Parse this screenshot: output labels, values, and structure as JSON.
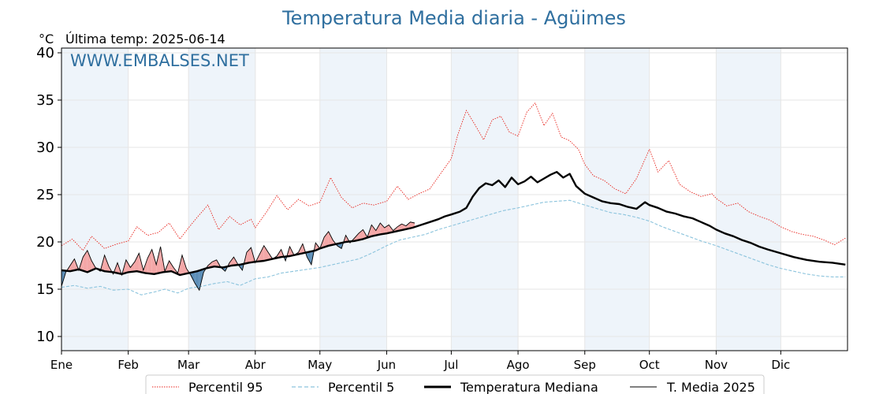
{
  "colors": {
    "title": "#2f6f9f",
    "p95": "#e8231c",
    "p5": "#8cc4dd",
    "median": "#000000",
    "current": "#000000",
    "above_fill": "#f4a7a7",
    "below_fill": "#5d8fb8",
    "band": "#eef4fa"
  },
  "chart_data": {
    "type": "line",
    "title": "Temperatura Media diaria - Agüimes",
    "unit_label": "°C",
    "subtitle": "Última temp: 2025-06-14",
    "watermark": "WWW.EMBALSES.NET",
    "ylim": [
      8.5,
      40.5
    ],
    "xlim": [
      0,
      365
    ],
    "y_ticks": [
      10,
      15,
      20,
      25,
      30,
      35,
      40
    ],
    "month_labels": [
      "Ene",
      "Feb",
      "Mar",
      "Abr",
      "May",
      "Jun",
      "Jul",
      "Ago",
      "Sep",
      "Oct",
      "Nov",
      "Dic"
    ],
    "month_starts": [
      0,
      31,
      59,
      90,
      120,
      151,
      181,
      212,
      243,
      273,
      304,
      334,
      365
    ],
    "shaded_months": [
      0,
      2,
      4,
      6,
      8,
      10
    ],
    "grid": true,
    "legend_position": "bottom",
    "series": [
      {
        "name": "Percentil 95",
        "style": "dotted-red",
        "x": [
          0,
          5,
          10,
          14,
          20,
          26,
          31,
          35,
          40,
          45,
          50,
          55,
          59,
          63,
          68,
          73,
          78,
          83,
          88,
          90,
          95,
          100,
          105,
          110,
          115,
          120,
          125,
          130,
          135,
          140,
          145,
          151,
          156,
          161,
          166,
          171,
          176,
          181,
          184,
          188,
          192,
          196,
          200,
          204,
          208,
          212,
          216,
          220,
          224,
          228,
          232,
          236,
          240,
          243,
          247,
          252,
          257,
          262,
          267,
          273,
          277,
          282,
          287,
          292,
          297,
          302,
          304,
          309,
          314,
          319,
          324,
          329,
          334,
          339,
          344,
          349,
          354,
          359,
          364
        ],
        "y": [
          19.6,
          20.3,
          19.1,
          20.6,
          19.3,
          19.8,
          20.1,
          21.6,
          20.7,
          21.0,
          22.0,
          20.3,
          21.5,
          22.6,
          23.9,
          21.3,
          22.7,
          21.8,
          22.4,
          21.5,
          23.1,
          24.9,
          23.4,
          24.5,
          23.8,
          24.2,
          26.8,
          24.7,
          23.6,
          24.1,
          23.9,
          24.3,
          25.9,
          24.5,
          25.1,
          25.6,
          27.2,
          28.8,
          31.3,
          33.9,
          32.4,
          30.8,
          32.9,
          33.3,
          31.6,
          31.2,
          33.7,
          34.7,
          32.3,
          33.6,
          31.1,
          30.7,
          29.8,
          28.2,
          27.0,
          26.5,
          25.6,
          25.1,
          26.7,
          29.8,
          27.4,
          28.6,
          26.1,
          25.3,
          24.8,
          25.1,
          24.6,
          23.8,
          24.1,
          23.2,
          22.7,
          22.3,
          21.6,
          21.1,
          20.8,
          20.6,
          20.2,
          19.7,
          20.4
        ]
      },
      {
        "name": "Percentil 5",
        "style": "dashed-lightblue",
        "x": [
          0,
          6,
          12,
          18,
          24,
          31,
          37,
          43,
          48,
          54,
          59,
          65,
          71,
          77,
          83,
          90,
          96,
          102,
          108,
          114,
          120,
          126,
          132,
          138,
          144,
          151,
          157,
          163,
          169,
          175,
          181,
          187,
          193,
          199,
          205,
          212,
          218,
          224,
          230,
          236,
          243,
          249,
          255,
          261,
          267,
          273,
          279,
          285,
          291,
          297,
          304,
          310,
          316,
          322,
          328,
          334,
          340,
          346,
          352,
          358,
          364
        ],
        "y": [
          15.2,
          15.4,
          15.1,
          15.3,
          14.9,
          15.0,
          14.4,
          14.7,
          15.0,
          14.6,
          15.1,
          15.3,
          15.6,
          15.8,
          15.4,
          16.1,
          16.3,
          16.7,
          16.9,
          17.1,
          17.3,
          17.6,
          17.9,
          18.2,
          18.8,
          19.6,
          20.2,
          20.5,
          20.8,
          21.3,
          21.7,
          22.1,
          22.5,
          22.9,
          23.3,
          23.6,
          23.9,
          24.2,
          24.3,
          24.4,
          23.9,
          23.5,
          23.1,
          22.9,
          22.6,
          22.2,
          21.6,
          21.1,
          20.6,
          20.1,
          19.6,
          19.1,
          18.6,
          18.1,
          17.6,
          17.2,
          16.9,
          16.6,
          16.4,
          16.3,
          16.3
        ]
      },
      {
        "name": "Temperatura Mediana",
        "style": "thick-black",
        "x": [
          0,
          4,
          8,
          12,
          16,
          20,
          24,
          28,
          31,
          35,
          39,
          43,
          47,
          51,
          55,
          59,
          63,
          67,
          71,
          75,
          79,
          83,
          87,
          90,
          94,
          98,
          102,
          106,
          110,
          114,
          118,
          120,
          124,
          128,
          132,
          136,
          140,
          144,
          148,
          151,
          155,
          159,
          163,
          167,
          171,
          175,
          178,
          181,
          185,
          188,
          191,
          194,
          197,
          200,
          203,
          206,
          209,
          212,
          215,
          218,
          221,
          224,
          227,
          230,
          233,
          236,
          239,
          243,
          247,
          251,
          255,
          259,
          263,
          267,
          271,
          273,
          277,
          281,
          285,
          289,
          293,
          297,
          301,
          304,
          308,
          312,
          316,
          320,
          324,
          328,
          334,
          340,
          346,
          352,
          358,
          364
        ],
        "y": [
          17.0,
          16.9,
          17.1,
          16.8,
          17.2,
          16.9,
          16.8,
          16.6,
          16.8,
          16.9,
          16.7,
          16.6,
          16.8,
          16.9,
          16.5,
          16.7,
          16.9,
          17.2,
          17.4,
          17.3,
          17.5,
          17.6,
          17.8,
          17.9,
          18.0,
          18.2,
          18.4,
          18.5,
          18.7,
          18.9,
          19.1,
          19.3,
          19.6,
          19.8,
          20.0,
          20.1,
          20.3,
          20.6,
          20.8,
          20.9,
          21.1,
          21.3,
          21.5,
          21.8,
          22.1,
          22.4,
          22.7,
          22.9,
          23.2,
          23.6,
          24.8,
          25.7,
          26.2,
          26.0,
          26.5,
          25.8,
          26.8,
          26.1,
          26.4,
          26.9,
          26.3,
          26.7,
          27.1,
          27.4,
          26.8,
          27.2,
          25.9,
          25.1,
          24.7,
          24.3,
          24.1,
          24.0,
          23.7,
          23.5,
          24.2,
          23.9,
          23.6,
          23.2,
          23.0,
          22.7,
          22.5,
          22.1,
          21.7,
          21.3,
          20.9,
          20.6,
          20.2,
          19.9,
          19.5,
          19.2,
          18.8,
          18.4,
          18.1,
          17.9,
          17.8,
          17.6
        ]
      },
      {
        "name": "T. Media 2025",
        "style": "thin-black",
        "x": [
          0,
          2,
          4,
          6,
          8,
          10,
          12,
          14,
          16,
          18,
          20,
          22,
          24,
          26,
          28,
          30,
          32,
          34,
          36,
          38,
          40,
          42,
          44,
          46,
          48,
          50,
          52,
          54,
          56,
          58,
          60,
          62,
          64,
          66,
          68,
          70,
          72,
          74,
          76,
          78,
          80,
          82,
          84,
          86,
          88,
          90,
          92,
          94,
          96,
          98,
          100,
          102,
          104,
          106,
          108,
          110,
          112,
          114,
          116,
          118,
          120,
          122,
          124,
          126,
          128,
          130,
          132,
          134,
          136,
          138,
          140,
          142,
          144,
          146,
          148,
          150,
          152,
          154,
          156,
          158,
          160,
          162,
          164
        ],
        "y": [
          15.3,
          16.8,
          17.5,
          18.2,
          17.0,
          18.4,
          19.1,
          18.0,
          17.2,
          16.9,
          18.6,
          17.4,
          16.6,
          17.8,
          16.5,
          18.1,
          17.3,
          17.9,
          18.8,
          17.0,
          18.3,
          19.2,
          17.6,
          19.5,
          16.9,
          18.0,
          17.3,
          16.7,
          18.6,
          17.2,
          16.5,
          15.6,
          14.9,
          16.8,
          17.5,
          17.9,
          18.1,
          17.3,
          16.9,
          17.8,
          18.4,
          17.6,
          17.0,
          18.9,
          19.4,
          17.8,
          18.7,
          19.6,
          18.9,
          18.2,
          18.5,
          19.2,
          18.0,
          19.5,
          18.6,
          18.9,
          19.8,
          18.4,
          17.6,
          19.9,
          19.3,
          20.5,
          21.1,
          20.2,
          19.6,
          19.3,
          20.7,
          19.9,
          20.4,
          20.9,
          21.3,
          20.5,
          21.8,
          21.2,
          22.0,
          21.5,
          21.8,
          21.2,
          21.6,
          21.9,
          21.7,
          22.1,
          22.0
        ]
      }
    ]
  }
}
